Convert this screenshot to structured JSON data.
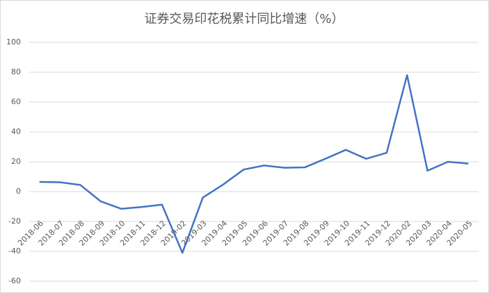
{
  "chart_data": {
    "type": "line",
    "title": "证券交易印花税累计同比增速（%）",
    "categories": [
      "2018-06",
      "2018-07",
      "2018-08",
      "2018-09",
      "2018-10",
      "2018-11",
      "2018-12",
      "2019-02",
      "2019-03",
      "2019-04",
      "2019-05",
      "2019-06",
      "2019-07",
      "2019-08",
      "2019-09",
      "2019-10",
      "2019-11",
      "2019-12",
      "2020-02",
      "2020-03",
      "2020-04",
      "2020-05"
    ],
    "values": [
      6.5,
      6.3,
      4.5,
      -6.5,
      -11.5,
      -10.3,
      -8.7,
      -41,
      -4,
      4.8,
      14.8,
      17.5,
      16,
      16.3,
      22,
      28,
      22,
      26,
      78,
      14,
      20,
      18.8
    ],
    "color": "#4472c4",
    "ylim": [
      -60,
      100
    ],
    "yticks": [
      -60,
      -40,
      -20,
      0,
      20,
      40,
      60,
      80,
      100
    ],
    "grid": true
  }
}
